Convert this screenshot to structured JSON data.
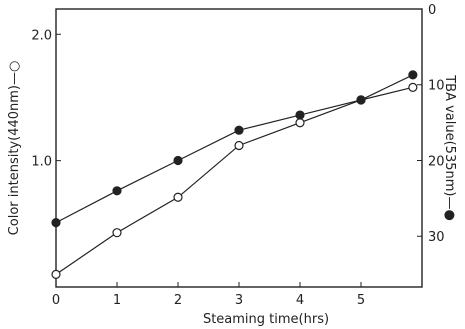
{
  "chart_data": {
    "type": "line",
    "title": "",
    "xlabel": "Steaming  time(hrs)",
    "ylabel_left": "Color  intensity(440nm)—○",
    "ylabel_right": "TBA  value(535nm)—●",
    "xlim": [
      0,
      6
    ],
    "ylim_left": [
      0,
      2.2
    ],
    "ylim_right": [
      0,
      36.7
    ],
    "right_axis_inverted": true,
    "x_ticks": [
      "0",
      "1",
      "2",
      "3",
      "4",
      "5"
    ],
    "y_left_ticks": [
      "1.0",
      "2.0"
    ],
    "y_right_ticks": [
      "0",
      "10",
      "20",
      "30"
    ],
    "grid": false,
    "series": [
      {
        "axis": "left",
        "marker": "open-circle",
        "x": [
          0,
          1,
          2,
          3,
          4,
          5,
          5.85
        ],
        "y": [
          0.1,
          0.43,
          0.71,
          1.12,
          1.3,
          1.48,
          1.58
        ]
      },
      {
        "axis": "right",
        "marker": "filled-circle",
        "x": [
          0,
          1,
          2,
          3,
          4,
          5,
          5.85
        ],
        "y": [
          28.2,
          24.0,
          20.0,
          16.0,
          14.0,
          12.0,
          8.7
        ]
      }
    ]
  }
}
